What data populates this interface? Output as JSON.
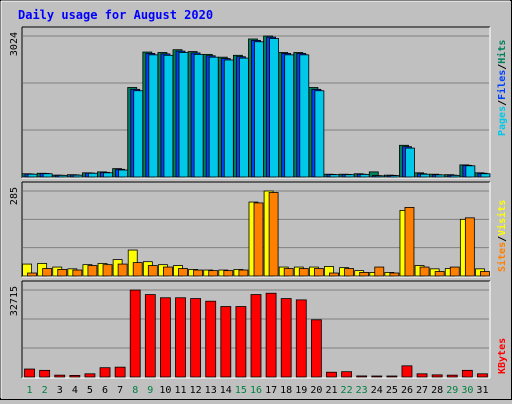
{
  "title": "Daily usage for August 2020",
  "colors": {
    "page_bg": "#c0c0c0",
    "panel_bg": "#c0c0c0",
    "title": "#0000ff",
    "grid": "#808080",
    "hits": "#00805c",
    "files": "#0040ff",
    "pages": "#00c8e8",
    "visits": "#ffff00",
    "sites": "#ff8000",
    "kbytes": "#ff0000",
    "weekend_day": "#008040",
    "weekday_day": "#000000"
  },
  "legend_top": {
    "pages": "Pages",
    "files": "Files",
    "hits": "Hits",
    "sep": "/"
  },
  "legend_mid": {
    "sites": "Sites",
    "visits": "Visits",
    "sep": "/"
  },
  "legend_bot": {
    "kbytes": "KBytes"
  },
  "chart_data": {
    "type": "bar",
    "categories": [
      "1",
      "2",
      "3",
      "4",
      "5",
      "6",
      "7",
      "8",
      "9",
      "10",
      "11",
      "12",
      "13",
      "14",
      "15",
      "16",
      "17",
      "18",
      "19",
      "20",
      "21",
      "22",
      "23",
      "24",
      "25",
      "26",
      "27",
      "28",
      "29",
      "30",
      "31"
    ],
    "weekend_days": [
      1,
      2,
      8,
      9,
      15,
      16,
      22,
      23,
      29,
      30
    ],
    "panels": [
      {
        "id": "hits-files-pages",
        "ymax_label": "3024",
        "ylim": [
          0,
          3024
        ],
        "series": [
          {
            "name": "Hits",
            "values": [
              70,
              80,
              40,
              50,
              90,
              110,
              180,
              1920,
              2680,
              2670,
              2730,
              2690,
              2630,
              2570,
              2610,
              2960,
              3024,
              2670,
              2670,
              1920,
              60,
              60,
              70,
              110,
              40,
              680,
              90,
              60,
              50,
              260,
              90
            ]
          },
          {
            "name": "Files",
            "values": [
              65,
              75,
              38,
              45,
              85,
              100,
              165,
              1880,
              2650,
              2640,
              2700,
              2660,
              2600,
              2540,
              2580,
              2930,
              3000,
              2650,
              2650,
              1880,
              55,
              55,
              60,
              30,
              35,
              650,
              70,
              50,
              40,
              250,
              80
            ]
          },
          {
            "name": "Pages",
            "values": [
              60,
              70,
              35,
              40,
              80,
              90,
              150,
              1850,
              2620,
              2610,
              2670,
              2630,
              2570,
              2510,
              2550,
              2900,
              2970,
              2620,
              2620,
              1850,
              50,
              50,
              55,
              25,
              30,
              620,
              60,
              45,
              35,
              240,
              70
            ]
          }
        ]
      },
      {
        "id": "visits-sites",
        "ymax_label": "285",
        "ylim": [
          0,
          285
        ],
        "series": [
          {
            "name": "Visits",
            "values": [
              40,
              42,
              30,
              24,
              38,
              42,
              55,
              87,
              48,
              38,
              35,
              22,
              20,
              20,
              22,
              248,
              285,
              30,
              30,
              30,
              32,
              28,
              18,
              12,
              12,
              220,
              35,
              24,
              25,
              190,
              24
            ]
          },
          {
            "name": "Sites",
            "values": [
              10,
              25,
              22,
              20,
              35,
              38,
              40,
              45,
              35,
              30,
              25,
              20,
              18,
              18,
              20,
              245,
              280,
              25,
              25,
              25,
              10,
              25,
              12,
              30,
              10,
              230,
              30,
              15,
              30,
              195,
              15
            ]
          }
        ]
      },
      {
        "id": "kbytes",
        "ymax_label": "32715",
        "ylim": [
          0,
          32715
        ],
        "series": [
          {
            "name": "KBytes",
            "values": [
              3000,
              2500,
              700,
              600,
              1200,
              3500,
              3700,
              32700,
              31000,
              29800,
              29800,
              29500,
              28500,
              26500,
              26500,
              31000,
              31500,
              29500,
              29000,
              21500,
              1800,
              2000,
              400,
              300,
              300,
              4200,
              1200,
              800,
              700,
              2500,
              1200
            ]
          }
        ]
      }
    ]
  }
}
